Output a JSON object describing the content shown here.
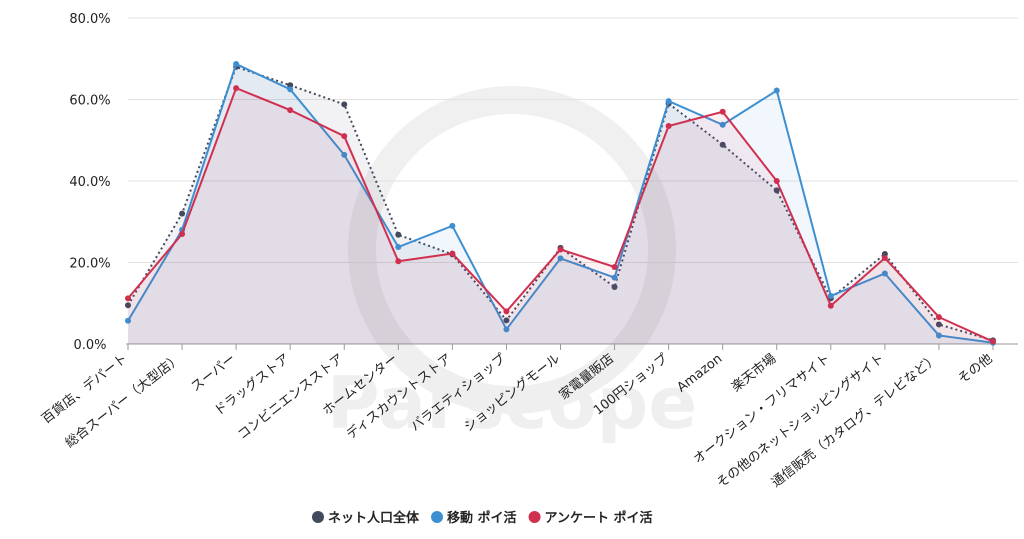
{
  "chart_data": {
    "type": "line",
    "watermark": "Parscope",
    "categories": [
      "百貨店、デパート",
      "総合スーパー（大型店）",
      "スーパー",
      "ドラッグストア",
      "コンビニエンスストア",
      "ホームセンター",
      "ディスカウントストア",
      "バラエティショップ",
      "ショッピングモール",
      "家電量販店",
      "100円ショップ",
      "Amazon",
      "楽天市場",
      "オークション・フリマサイト",
      "その他のネットショッピングサイト",
      "通信販売（カタログ、テレビなど）",
      "その他"
    ],
    "series": [
      {
        "name": "ネット人口全体",
        "color": "#434a5e",
        "dash": true,
        "values": [
          9.5,
          32,
          68,
          63.5,
          58.8,
          26.8,
          22,
          5.8,
          23.6,
          14,
          59,
          48.9,
          37.7,
          11.2,
          22.1,
          4.8,
          0.9
        ]
      },
      {
        "name": "移動 ポイ活",
        "color": "#3d8fd1",
        "values": [
          5.7,
          28,
          68.7,
          62.5,
          46.4,
          23.8,
          29,
          3.6,
          21,
          16.3,
          59.6,
          53.8,
          62.2,
          11.8,
          17.3,
          2.1,
          0.3
        ]
      },
      {
        "name": "アンケート ポイ活",
        "color": "#d03050",
        "values": [
          11.2,
          27,
          62.8,
          57.4,
          51,
          20.3,
          22.2,
          8,
          23.2,
          18.9,
          53.5,
          57,
          40,
          9.4,
          21.1,
          6.6,
          0.6
        ]
      }
    ],
    "ylim": [
      0,
      80
    ],
    "yticks": [
      {
        "value": 0,
        "label": "0.0%"
      },
      {
        "value": 20,
        "label": "20.0%"
      },
      {
        "value": 40,
        "label": "40.0%"
      },
      {
        "value": 60,
        "label": "60.0%"
      },
      {
        "value": 80,
        "label": "80.0%"
      }
    ],
    "grid": true,
    "legend": "bottom"
  }
}
